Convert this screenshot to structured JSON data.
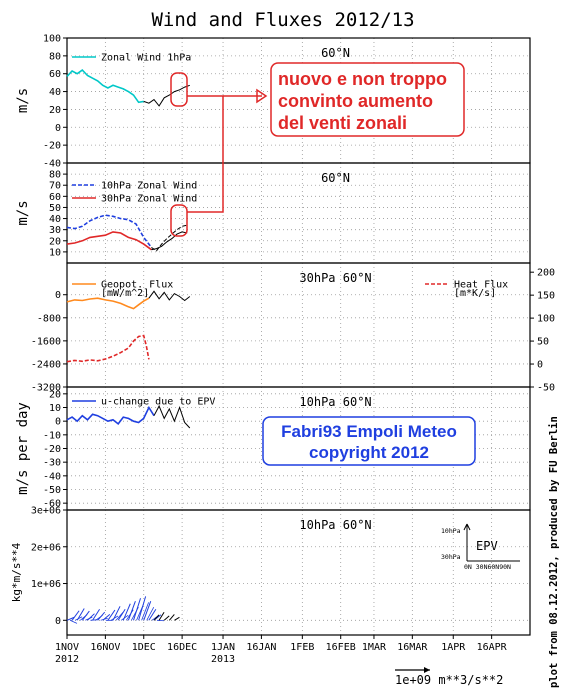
{
  "title": "Wind and Fluxes 2012/13",
  "colors": {
    "cyan": "#00c8c8",
    "blue": "#1f3fe0",
    "red": "#e02828",
    "orange": "#ff8a1e",
    "annot_red": "#e02828",
    "annot_blue": "#1f3fe0",
    "black": "#000000"
  },
  "x_ticks": [
    {
      "day": 0,
      "top": "1NOV",
      "bottom": "2012"
    },
    {
      "day": 15,
      "top": "16NOV",
      "bottom": ""
    },
    {
      "day": 30,
      "top": "1DEC",
      "bottom": ""
    },
    {
      "day": 45,
      "top": "16DEC",
      "bottom": ""
    },
    {
      "day": 61,
      "top": "1JAN",
      "bottom": "2013"
    },
    {
      "day": 76,
      "top": "16JAN",
      "bottom": ""
    },
    {
      "day": 92,
      "top": "1FEB",
      "bottom": ""
    },
    {
      "day": 107,
      "top": "16FEB",
      "bottom": ""
    },
    {
      "day": 120,
      "top": "1MAR",
      "bottom": ""
    },
    {
      "day": 135,
      "top": "16MAR",
      "bottom": ""
    },
    {
      "day": 151,
      "top": "1APR",
      "bottom": ""
    },
    {
      "day": 166,
      "top": "16APR",
      "bottom": ""
    }
  ],
  "chart_data": [
    {
      "type": "line",
      "panel_label": "60°N",
      "ylabel": "m/s",
      "ylim": [
        -40,
        100
      ],
      "yticks": [
        100,
        80,
        60,
        40,
        20,
        0,
        -20,
        -40
      ],
      "series": [
        {
          "name": "Zonal Wind 1hPa",
          "color": "cyan",
          "dash": false,
          "x": [
            0,
            2,
            4,
            6,
            8,
            10,
            12,
            14,
            16,
            18,
            20,
            22,
            24,
            26,
            28,
            30
          ],
          "y": [
            57,
            63,
            60,
            64,
            58,
            55,
            52,
            47,
            44,
            47,
            45,
            43,
            40,
            36,
            28,
            29
          ]
        },
        {
          "name": "",
          "color": "black",
          "dash": false,
          "x": [
            30,
            32,
            34,
            36,
            38,
            40,
            42,
            44,
            46,
            48
          ],
          "y": [
            29,
            27,
            31,
            24,
            33,
            36,
            40,
            42,
            45,
            47
          ]
        }
      ]
    },
    {
      "type": "line",
      "panel_label": "60°N",
      "ylabel": "m/s",
      "ylim": [
        0,
        90
      ],
      "yticks": [
        80,
        70,
        60,
        50,
        40,
        30,
        20,
        10
      ],
      "series": [
        {
          "name": "10hPa Zonal Wind",
          "color": "blue",
          "dash": true,
          "x": [
            0,
            3,
            6,
            9,
            12,
            15,
            18,
            21,
            24,
            27,
            30,
            33
          ],
          "y": [
            32,
            31,
            33,
            38,
            41,
            43,
            42,
            40,
            39,
            35,
            23,
            14
          ]
        },
        {
          "name": "30hPa Zonal Wind",
          "color": "red",
          "dash": false,
          "x": [
            0,
            3,
            6,
            9,
            12,
            15,
            18,
            21,
            24,
            27,
            30,
            33
          ],
          "y": [
            17,
            18,
            20,
            23,
            24,
            25,
            28,
            27,
            23,
            21,
            17,
            12
          ]
        },
        {
          "name": "",
          "color": "black",
          "dash": true,
          "x": [
            33,
            35,
            37,
            39,
            41,
            43,
            45,
            47
          ],
          "y": [
            14,
            11,
            17,
            22,
            26,
            30,
            33,
            34
          ]
        },
        {
          "name": "",
          "color": "black",
          "dash": false,
          "x": [
            33,
            35,
            37,
            39,
            41,
            43,
            45,
            47
          ],
          "y": [
            12,
            13,
            15,
            19,
            22,
            26,
            28,
            27
          ]
        }
      ]
    },
    {
      "type": "line",
      "panel_label": "30hPa 60°N",
      "ylabel": "",
      "ylim": [
        -3200,
        1100
      ],
      "yticks": [
        -3200,
        -2400,
        -1600,
        -800,
        0
      ],
      "y2lim": [
        -50,
        220
      ],
      "y2ticks": [
        200,
        150,
        100,
        50,
        0,
        -50
      ],
      "series": [
        {
          "name": "Geopot. Flux [mW/m^2]",
          "color": "orange",
          "dash": false,
          "axis": "left",
          "x": [
            0,
            3,
            6,
            9,
            12,
            15,
            18,
            21,
            24,
            26,
            28,
            30,
            32
          ],
          "y": [
            -250,
            -180,
            -200,
            -150,
            -120,
            -180,
            -220,
            -300,
            -420,
            -480,
            -350,
            -220,
            -120
          ]
        },
        {
          "name": "Heat Flux [m*K/s]",
          "color": "red",
          "dash": true,
          "axis": "right",
          "x": [
            0,
            3,
            6,
            9,
            12,
            15,
            18,
            21,
            24,
            26,
            28,
            30,
            31,
            32
          ],
          "y": [
            5,
            8,
            6,
            9,
            7,
            11,
            17,
            25,
            35,
            50,
            60,
            62,
            40,
            10
          ]
        },
        {
          "name": "",
          "color": "black",
          "dash": false,
          "axis": "left",
          "x": [
            32,
            34,
            36,
            38,
            40,
            42,
            44,
            46,
            48
          ],
          "y": [
            -120,
            120,
            -140,
            80,
            -180,
            40,
            -60,
            -200,
            -60
          ]
        }
      ]
    },
    {
      "type": "line",
      "panel_label": "10hPa 60°N",
      "ylabel": "m/s per day",
      "ylim": [
        -65,
        25
      ],
      "yticks": [
        20,
        10,
        0,
        -10,
        -20,
        -30,
        -40,
        -50,
        -60
      ],
      "series": [
        {
          "name": "u-change due to EPV",
          "color": "blue",
          "dash": false,
          "x": [
            0,
            2,
            4,
            6,
            8,
            10,
            12,
            14,
            16,
            18,
            20,
            22,
            24,
            26,
            28,
            30,
            32,
            34
          ],
          "y": [
            1,
            3,
            0,
            4,
            1,
            5,
            4,
            2,
            0,
            1,
            -2,
            3,
            2,
            0,
            -1,
            2,
            10,
            4
          ]
        },
        {
          "name": "",
          "color": "black",
          "dash": false,
          "x": [
            34,
            36,
            38,
            40,
            42,
            44,
            46,
            48
          ],
          "y": [
            4,
            11,
            2,
            9,
            0,
            10,
            -1,
            -5
          ]
        }
      ]
    },
    {
      "type": "line",
      "panel_label": "10hPa 60°N",
      "ylabel": "kg*m/s**4",
      "ylim": [
        -400000,
        3000000
      ],
      "yticks_labels": [
        {
          "v": 3000000,
          "t": "3e+06"
        },
        {
          "v": 2000000,
          "t": "2e+06"
        },
        {
          "v": 1000000,
          "t": "1e+06"
        },
        {
          "v": 0,
          "t": "0"
        }
      ],
      "series": [
        {
          "name": "EPV vectors",
          "color": "blue",
          "dash": false,
          "x": [
            0,
            2,
            4,
            6,
            8,
            10,
            12,
            14,
            16,
            18,
            20,
            22,
            24,
            26,
            28,
            30,
            32,
            34
          ],
          "y": [
            80000,
            260000,
            320000,
            250000,
            180000,
            300000,
            220000,
            160000,
            280000,
            380000,
            300000,
            450000,
            520000,
            600000,
            650000,
            520000,
            300000,
            150000
          ]
        },
        {
          "name": "",
          "color": "black",
          "dash": false,
          "x": [
            34,
            36,
            38,
            40,
            42
          ],
          "y": [
            150000,
            220000,
            120000,
            160000,
            80000
          ]
        }
      ]
    }
  ],
  "legend_labels": {
    "zonal1": "Zonal Wind 1hPa",
    "w10": "10hPa Zonal Wind",
    "w30": "30hPa Zonal Wind",
    "geo1": "Geopot. Flux",
    "geo2": "[mW/m^2]",
    "heat1": "Heat Flux",
    "heat2": "[m*K/s]",
    "uchange": "u-change due to EPV"
  },
  "epv_key": {
    "title": "EPV",
    "y_top": "10hPa",
    "y_bot": "30hPa",
    "x_label": "0N 30N60N90N"
  },
  "scale_vector": "1e+09  m**3/s**2",
  "credit": "plot from 08.12.2012, produced by FU Berlin",
  "annotation_red": [
    "nuovo e non troppo",
    "convinto aumento",
    "del venti zonali"
  ],
  "annotation_blue": [
    "Fabri93 Empoli Meteo",
    "copyright 2012"
  ]
}
